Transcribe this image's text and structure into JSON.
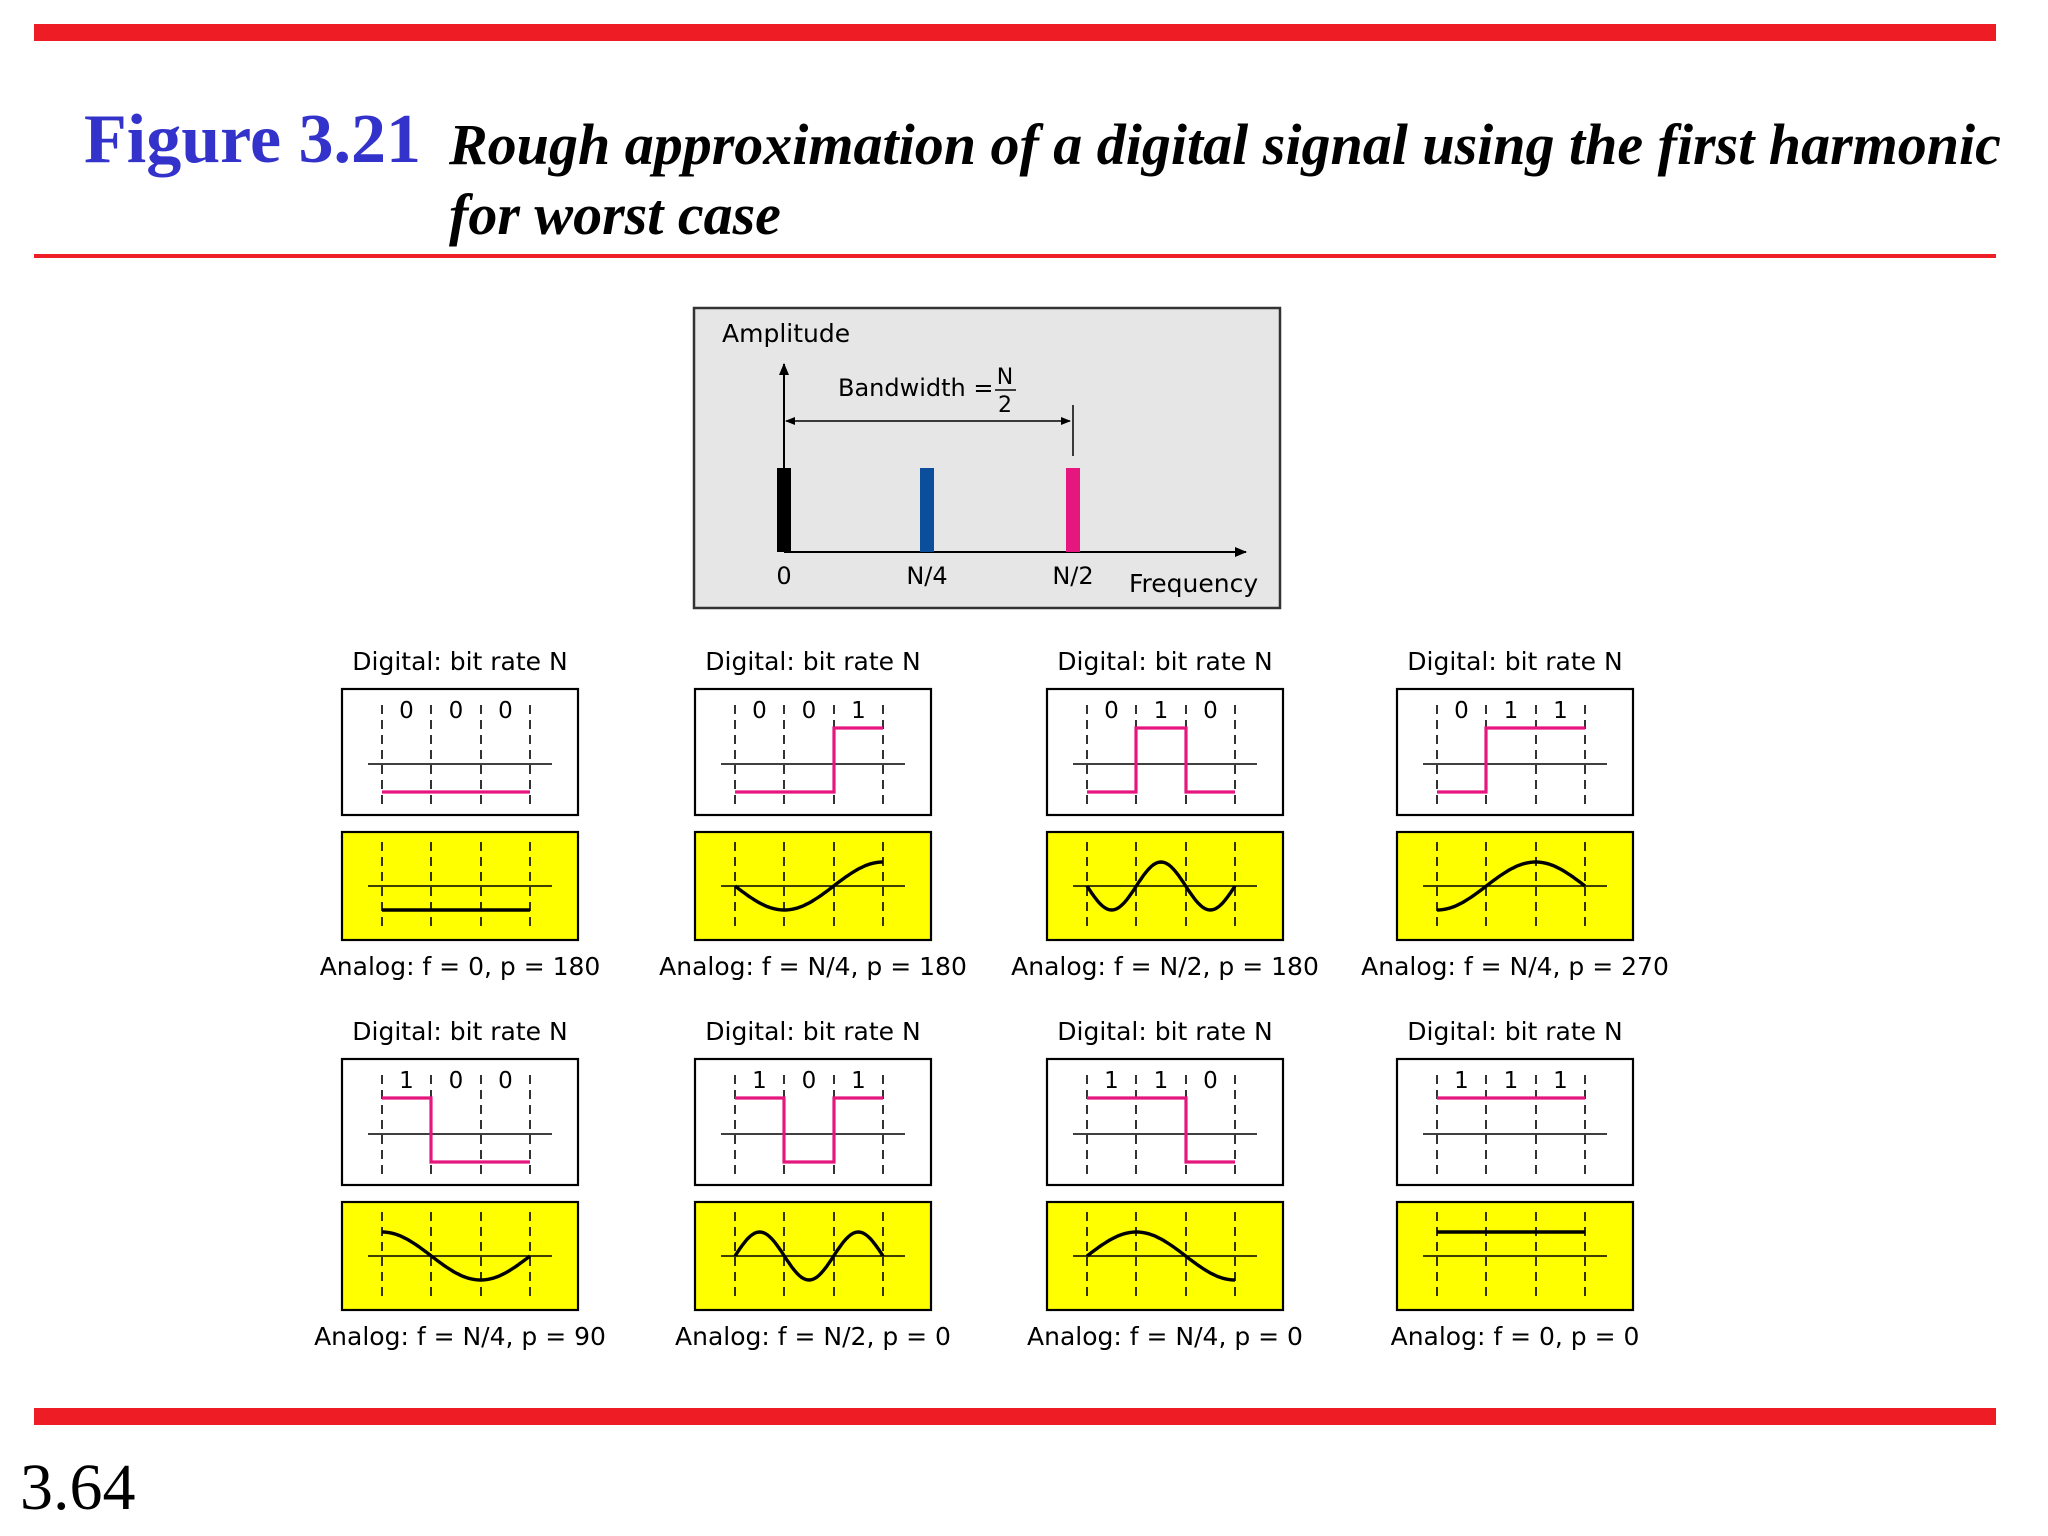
{
  "slide": {
    "figure_number": "Figure 3.21",
    "title": "Rough approximation of a digital signal using the first harmonic for worst case",
    "page_number": "3.64"
  },
  "colors": {
    "rule_red": "#ee1c24",
    "figure_blue": "#3333cc",
    "digital_magenta": "#e5177f",
    "analog_yellow": "#ffff00",
    "panel_gray": "#e6e6e6",
    "bar_blue": "#0b4f9c"
  },
  "spectrum": {
    "y_axis_label": "Amplitude",
    "x_axis_label": "Frequency",
    "bandwidth_label": "Bandwidth =",
    "bandwidth_numerator": "N",
    "bandwidth_denominator": "2",
    "ticks": [
      "0",
      "N/4",
      "N/2"
    ],
    "bars": [
      {
        "at": "0",
        "color": "#000000"
      },
      {
        "at": "N/4",
        "color": "#0b4f9c"
      },
      {
        "at": "N/2",
        "color": "#e5177f"
      }
    ]
  },
  "cases": [
    {
      "digital_label": "Digital: bit rate N",
      "bits": [
        "0",
        "0",
        "0"
      ],
      "analog_label": "Analog: f = 0, p = 180"
    },
    {
      "digital_label": "Digital: bit rate N",
      "bits": [
        "0",
        "0",
        "1"
      ],
      "analog_label": "Analog: f = N/4, p = 180"
    },
    {
      "digital_label": "Digital: bit rate N",
      "bits": [
        "0",
        "1",
        "0"
      ],
      "analog_label": "Analog: f = N/2, p = 180"
    },
    {
      "digital_label": "Digital: bit rate N",
      "bits": [
        "0",
        "1",
        "1"
      ],
      "analog_label": "Analog: f = N/4, p = 270"
    },
    {
      "digital_label": "Digital: bit rate N",
      "bits": [
        "1",
        "0",
        "0"
      ],
      "analog_label": "Analog: f = N/4, p = 90"
    },
    {
      "digital_label": "Digital: bit rate N",
      "bits": [
        "1",
        "0",
        "1"
      ],
      "analog_label": "Analog: f = N/2, p = 0"
    },
    {
      "digital_label": "Digital: bit rate N",
      "bits": [
        "1",
        "1",
        "0"
      ],
      "analog_label": "Analog: f = N/4, p = 0"
    },
    {
      "digital_label": "Digital: bit rate N",
      "bits": [
        "1",
        "1",
        "1"
      ],
      "analog_label": "Analog: f = 0, p = 0"
    }
  ]
}
